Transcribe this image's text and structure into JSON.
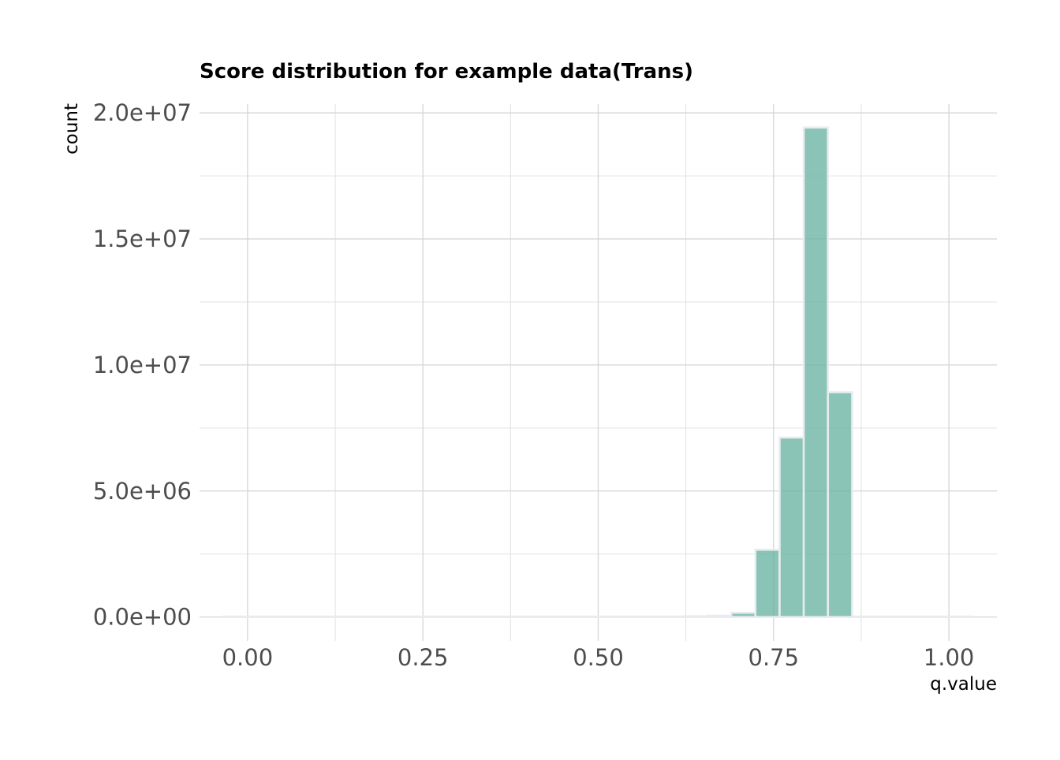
{
  "chart_data": {
    "type": "bar",
    "title": "Score distribution for example data(Trans)",
    "xlabel": "q.value",
    "ylabel": "count",
    "xlim": [
      -0.0685,
      1.0685
    ],
    "ylim": [
      -950000,
      20350000
    ],
    "x_ticks": [
      {
        "value": 0.0,
        "label": "0.00"
      },
      {
        "value": 0.25,
        "label": "0.25"
      },
      {
        "value": 0.5,
        "label": "0.50"
      },
      {
        "value": 0.75,
        "label": "0.75"
      },
      {
        "value": 1.0,
        "label": "1.00"
      }
    ],
    "y_ticks": [
      {
        "value": 0,
        "label": "0.0e+00"
      },
      {
        "value": 5000000,
        "label": "5.0e+06"
      },
      {
        "value": 10000000,
        "label": "1.0e+07"
      },
      {
        "value": 15000000,
        "label": "1.5e+07"
      },
      {
        "value": 20000000,
        "label": "2.0e+07"
      }
    ],
    "x_minor_ticks": [
      0.125,
      0.375,
      0.625,
      0.875
    ],
    "y_minor_ticks": [
      2500000,
      7500000,
      12500000,
      17500000
    ],
    "grid": true,
    "legend": "none",
    "bin_width": 0.0345,
    "bins": [
      {
        "x": -0.0172,
        "count": 0
      },
      {
        "x": 0.0172,
        "count": 0
      },
      {
        "x": 0.0517,
        "count": 0
      },
      {
        "x": 0.0862,
        "count": 0
      },
      {
        "x": 0.1207,
        "count": 0
      },
      {
        "x": 0.1552,
        "count": 0
      },
      {
        "x": 0.1897,
        "count": 0
      },
      {
        "x": 0.2241,
        "count": 0
      },
      {
        "x": 0.2586,
        "count": 0
      },
      {
        "x": 0.2931,
        "count": 0
      },
      {
        "x": 0.3276,
        "count": 0
      },
      {
        "x": 0.3621,
        "count": 0
      },
      {
        "x": 0.3966,
        "count": 0
      },
      {
        "x": 0.431,
        "count": 0
      },
      {
        "x": 0.4655,
        "count": 0
      },
      {
        "x": 0.5,
        "count": 0
      },
      {
        "x": 0.5345,
        "count": 0
      },
      {
        "x": 0.569,
        "count": 0
      },
      {
        "x": 0.6034,
        "count": 0
      },
      {
        "x": 0.6379,
        "count": 10000
      },
      {
        "x": 0.6724,
        "count": 30000
      },
      {
        "x": 0.7069,
        "count": 150000
      },
      {
        "x": 0.7414,
        "count": 2650000
      },
      {
        "x": 0.7759,
        "count": 7100000
      },
      {
        "x": 0.8103,
        "count": 19400000
      },
      {
        "x": 0.8448,
        "count": 8900000
      },
      {
        "x": 0.8793,
        "count": 0
      },
      {
        "x": 0.9138,
        "count": 0
      },
      {
        "x": 0.9483,
        "count": 0
      },
      {
        "x": 0.9828,
        "count": 0
      },
      {
        "x": 1.0172,
        "count": 0
      }
    ],
    "bar_fill": "#69b3a2",
    "bar_outline": "#e9ecef"
  }
}
